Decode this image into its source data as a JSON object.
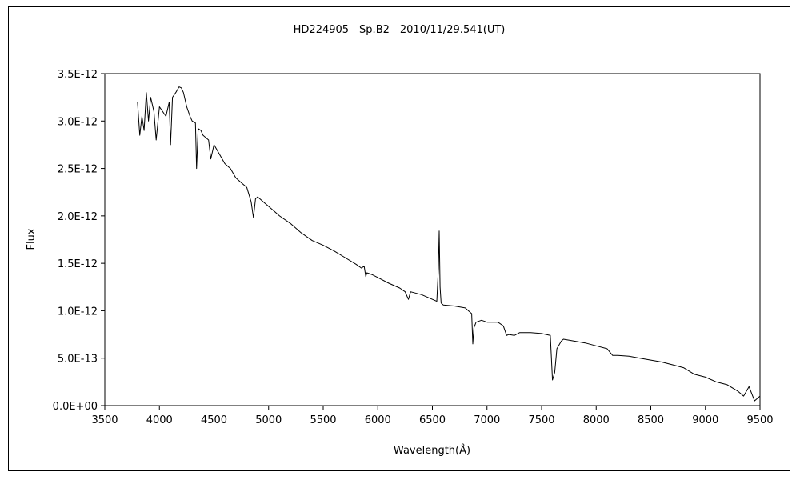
{
  "chart_data": {
    "type": "line",
    "title": "HD224905　Sp.B2　2010/11/29.541(UT)",
    "xlabel": "Wavelength(Å)",
    "ylabel": "Flux",
    "xlim": [
      3500,
      9500
    ],
    "ylim": [
      0,
      3.5e-12
    ],
    "x_ticks": [
      "3500",
      "4000",
      "4500",
      "5000",
      "5500",
      "6000",
      "6500",
      "7000",
      "7500",
      "8000",
      "8500",
      "9000",
      "9500"
    ],
    "y_ticks": [
      "0.0E+00",
      "5.0E-13",
      "1.0E-12",
      "1.5E-12",
      "2.0E-12",
      "2.5E-12",
      "3.0E-12",
      "3.5E-12"
    ],
    "grid": false,
    "legend": "none",
    "series": [
      {
        "color": "#000000",
        "x": [
          3800,
          3820,
          3840,
          3860,
          3880,
          3900,
          3920,
          3950,
          3970,
          4000,
          4030,
          4060,
          4090,
          4102,
          4120,
          4150,
          4180,
          4200,
          4220,
          4250,
          4280,
          4300,
          4330,
          4340,
          4355,
          4380,
          4400,
          4450,
          4471,
          4500,
          4550,
          4600,
          4650,
          4700,
          4750,
          4800,
          4840,
          4861,
          4880,
          4900,
          4950,
          5000,
          5050,
          5100,
          5200,
          5300,
          5400,
          5500,
          5600,
          5700,
          5800,
          5850,
          5875,
          5890,
          5900,
          5950,
          6000,
          6100,
          6200,
          6250,
          6280,
          6300,
          6400,
          6500,
          6540,
          6555,
          6562,
          6570,
          6580,
          6600,
          6700,
          6800,
          6860,
          6870,
          6880,
          6900,
          6950,
          7000,
          7100,
          7150,
          7180,
          7200,
          7250,
          7300,
          7400,
          7500,
          7580,
          7600,
          7620,
          7640,
          7680,
          7700,
          7800,
          7900,
          8000,
          8100,
          8150,
          8200,
          8300,
          8400,
          8500,
          8600,
          8700,
          8800,
          8900,
          9000,
          9100,
          9200,
          9300,
          9350,
          9400,
          9450,
          9500
        ],
        "values": [
          3.2e-12,
          2.85e-12,
          3.05e-12,
          2.9e-12,
          3.3e-12,
          3e-12,
          3.25e-12,
          3.1e-12,
          2.8e-12,
          3.15e-12,
          3.1e-12,
          3.05e-12,
          3.2e-12,
          2.75e-12,
          3.25e-12,
          3.3e-12,
          3.36e-12,
          3.35e-12,
          3.3e-12,
          3.15e-12,
          3.05e-12,
          3e-12,
          2.98e-12,
          2.5e-12,
          2.92e-12,
          2.9e-12,
          2.85e-12,
          2.8e-12,
          2.6e-12,
          2.75e-12,
          2.65e-12,
          2.55e-12,
          2.5e-12,
          2.4e-12,
          2.35e-12,
          2.3e-12,
          2.15e-12,
          1.98e-12,
          2.18e-12,
          2.2e-12,
          2.15e-12,
          2.1e-12,
          2.05e-12,
          2e-12,
          1.92e-12,
          1.82e-12,
          1.74e-12,
          1.69e-12,
          1.63e-12,
          1.56e-12,
          1.49e-12,
          1.45e-12,
          1.47e-12,
          1.36e-12,
          1.4e-12,
          1.38e-12,
          1.35e-12,
          1.29e-12,
          1.24e-12,
          1.2e-12,
          1.12e-12,
          1.2e-12,
          1.17e-12,
          1.12e-12,
          1.1e-12,
          1.45e-12,
          1.84e-12,
          1.25e-12,
          1.08e-12,
          1.06e-12,
          1.05e-12,
          1.03e-12,
          9.7e-13,
          6.5e-13,
          8.2e-13,
          8.8e-13,
          9e-13,
          8.8e-13,
          8.8e-13,
          8.4e-13,
          7.4e-13,
          7.5e-13,
          7.4e-13,
          7.7e-13,
          7.7e-13,
          7.6e-13,
          7.4e-13,
          2.7e-13,
          3.5e-13,
          6e-13,
          6.8e-13,
          7e-13,
          6.8e-13,
          6.6e-13,
          6.3e-13,
          6e-13,
          5.3e-13,
          5.3e-13,
          5.2e-13,
          5e-13,
          4.8e-13,
          4.6e-13,
          4.3e-13,
          4e-13,
          3.3e-13,
          3e-13,
          2.5e-13,
          2.2e-13,
          1.5e-13,
          1e-13,
          2e-13,
          5e-14,
          1e-13
        ]
      }
    ]
  }
}
